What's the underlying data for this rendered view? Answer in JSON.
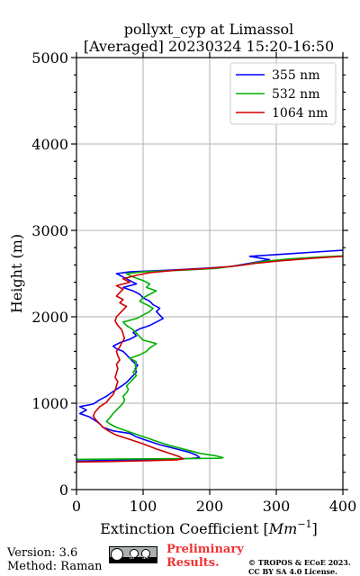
{
  "chart_data": {
    "type": "line",
    "title_line1": "pollyxt_cyp at Limassol",
    "title_line2": "[Averaged] 20230324 15:20-16:50",
    "xlabel_prefix": "Extinction Coefficient [",
    "xlabel_unit_base": "Mm",
    "xlabel_unit_exp": "−1",
    "xlabel_suffix": "]",
    "ylabel": "Height (m)",
    "xlim": [
      0,
      400
    ],
    "ylim": [
      0,
      5000
    ],
    "xticks": [
      0,
      100,
      200,
      300,
      400
    ],
    "xtick_labels": [
      "0",
      "100",
      "200",
      "300",
      "400"
    ],
    "yticks": [
      0,
      1000,
      2000,
      3000,
      4000,
      5000
    ],
    "ytick_labels": [
      "0",
      "1000",
      "2000",
      "3000",
      "4000",
      "5000"
    ],
    "grid": true,
    "legend_placement": "top-right",
    "series": [
      {
        "name": "355 nm",
        "color": "#0000ff",
        "points": [
          [
            0,
            330
          ],
          [
            60,
            340
          ],
          [
            120,
            350
          ],
          [
            170,
            360
          ],
          [
            185,
            370
          ],
          [
            180,
            400
          ],
          [
            170,
            430
          ],
          [
            150,
            470
          ],
          [
            125,
            520
          ],
          [
            105,
            570
          ],
          [
            90,
            610
          ],
          [
            80,
            650
          ],
          [
            55,
            680
          ],
          [
            40,
            720
          ],
          [
            35,
            760
          ],
          [
            30,
            790
          ],
          [
            20,
            840
          ],
          [
            5,
            880
          ],
          [
            15,
            920
          ],
          [
            5,
            960
          ],
          [
            25,
            990
          ],
          [
            35,
            1040
          ],
          [
            45,
            1080
          ],
          [
            52,
            1120
          ],
          [
            60,
            1160
          ],
          [
            68,
            1200
          ],
          [
            75,
            1240
          ],
          [
            80,
            1280
          ],
          [
            85,
            1320
          ],
          [
            90,
            1360
          ],
          [
            88,
            1400
          ],
          [
            92,
            1440
          ],
          [
            85,
            1480
          ],
          [
            80,
            1520
          ],
          [
            75,
            1560
          ],
          [
            70,
            1600
          ],
          [
            60,
            1630
          ],
          [
            55,
            1660
          ],
          [
            65,
            1700
          ],
          [
            80,
            1740
          ],
          [
            90,
            1780
          ],
          [
            85,
            1820
          ],
          [
            95,
            1860
          ],
          [
            110,
            1900
          ],
          [
            120,
            1940
          ],
          [
            130,
            1980
          ],
          [
            125,
            2020
          ],
          [
            120,
            2060
          ],
          [
            125,
            2100
          ],
          [
            115,
            2140
          ],
          [
            110,
            2180
          ],
          [
            100,
            2220
          ],
          [
            95,
            2260
          ],
          [
            85,
            2300
          ],
          [
            70,
            2340
          ],
          [
            90,
            2380
          ],
          [
            80,
            2420
          ],
          [
            70,
            2460
          ],
          [
            60,
            2500
          ],
          [
            80,
            2520
          ],
          [
            140,
            2540
          ],
          [
            190,
            2560
          ],
          [
            230,
            2580
          ],
          [
            260,
            2620
          ],
          [
            290,
            2660
          ],
          [
            260,
            2700
          ],
          [
            320,
            2730
          ],
          [
            380,
            2760
          ],
          [
            400,
            2770
          ]
        ]
      },
      {
        "name": "532 nm",
        "color": "#00b000",
        "points": [
          [
            0,
            350
          ],
          [
            80,
            355
          ],
          [
            160,
            358
          ],
          [
            215,
            362
          ],
          [
            220,
            370
          ],
          [
            210,
            390
          ],
          [
            185,
            420
          ],
          [
            165,
            460
          ],
          [
            140,
            510
          ],
          [
            120,
            560
          ],
          [
            105,
            600
          ],
          [
            90,
            640
          ],
          [
            75,
            680
          ],
          [
            60,
            720
          ],
          [
            50,
            760
          ],
          [
            45,
            790
          ],
          [
            50,
            830
          ],
          [
            55,
            880
          ],
          [
            60,
            920
          ],
          [
            65,
            960
          ],
          [
            70,
            1000
          ],
          [
            72,
            1040
          ],
          [
            70,
            1080
          ],
          [
            75,
            1120
          ],
          [
            78,
            1160
          ],
          [
            75,
            1200
          ],
          [
            80,
            1240
          ],
          [
            85,
            1280
          ],
          [
            90,
            1320
          ],
          [
            85,
            1360
          ],
          [
            90,
            1400
          ],
          [
            88,
            1440
          ],
          [
            90,
            1480
          ],
          [
            80,
            1520
          ],
          [
            95,
            1560
          ],
          [
            105,
            1600
          ],
          [
            110,
            1640
          ],
          [
            120,
            1690
          ],
          [
            100,
            1730
          ],
          [
            95,
            1770
          ],
          [
            90,
            1810
          ],
          [
            85,
            1850
          ],
          [
            75,
            1900
          ],
          [
            70,
            1940
          ],
          [
            90,
            1980
          ],
          [
            100,
            2020
          ],
          [
            110,
            2060
          ],
          [
            115,
            2100
          ],
          [
            105,
            2140
          ],
          [
            95,
            2180
          ],
          [
            100,
            2220
          ],
          [
            110,
            2260
          ],
          [
            120,
            2300
          ],
          [
            105,
            2340
          ],
          [
            110,
            2380
          ],
          [
            100,
            2420
          ],
          [
            85,
            2460
          ],
          [
            75,
            2500
          ],
          [
            100,
            2520
          ],
          [
            160,
            2540
          ],
          [
            210,
            2560
          ],
          [
            250,
            2600
          ],
          [
            280,
            2640
          ],
          [
            320,
            2670
          ],
          [
            360,
            2690
          ],
          [
            400,
            2705
          ]
        ]
      },
      {
        "name": "1064 nm",
        "color": "#d00000",
        "points": [
          [
            0,
            320
          ],
          [
            50,
            325
          ],
          [
            110,
            335
          ],
          [
            150,
            345
          ],
          [
            160,
            355
          ],
          [
            155,
            380
          ],
          [
            140,
            420
          ],
          [
            120,
            470
          ],
          [
            100,
            530
          ],
          [
            80,
            580
          ],
          [
            60,
            630
          ],
          [
            50,
            670
          ],
          [
            40,
            720
          ],
          [
            35,
            760
          ],
          [
            30,
            800
          ],
          [
            25,
            850
          ],
          [
            28,
            900
          ],
          [
            35,
            960
          ],
          [
            45,
            1010
          ],
          [
            50,
            1060
          ],
          [
            55,
            1100
          ],
          [
            58,
            1150
          ],
          [
            60,
            1200
          ],
          [
            62,
            1250
          ],
          [
            58,
            1300
          ],
          [
            60,
            1350
          ],
          [
            62,
            1400
          ],
          [
            60,
            1450
          ],
          [
            65,
            1500
          ],
          [
            62,
            1550
          ],
          [
            60,
            1600
          ],
          [
            65,
            1650
          ],
          [
            68,
            1700
          ],
          [
            72,
            1750
          ],
          [
            70,
            1800
          ],
          [
            68,
            1850
          ],
          [
            62,
            1900
          ],
          [
            58,
            1950
          ],
          [
            60,
            2000
          ],
          [
            65,
            2040
          ],
          [
            70,
            2080
          ],
          [
            75,
            2120
          ],
          [
            65,
            2160
          ],
          [
            70,
            2200
          ],
          [
            60,
            2240
          ],
          [
            65,
            2280
          ],
          [
            70,
            2320
          ],
          [
            60,
            2360
          ],
          [
            80,
            2400
          ],
          [
            70,
            2440
          ],
          [
            90,
            2480
          ],
          [
            110,
            2510
          ],
          [
            150,
            2540
          ],
          [
            200,
            2560
          ],
          [
            240,
            2590
          ],
          [
            270,
            2620
          ],
          [
            310,
            2650
          ],
          [
            360,
            2680
          ],
          [
            400,
            2700
          ]
        ]
      }
    ]
  },
  "footer": {
    "version": "Version: 3.6",
    "method": "Method: Raman",
    "prelim_line1": "Preliminary",
    "prelim_line2": "Results.",
    "copyright_line1": "© TROPOS & ECoE 2023.",
    "copyright_line2": "CC BY SA 4.0 License.",
    "cc_badge_by": "BY",
    "cc_badge_sa": "SA"
  },
  "colors": {
    "prelim": "#ee3333",
    "grid": "#b0b0b0"
  }
}
